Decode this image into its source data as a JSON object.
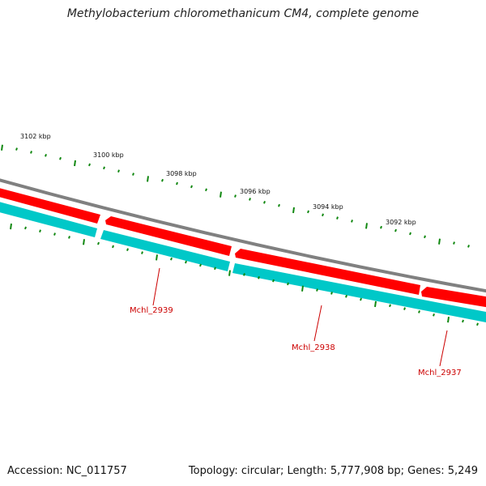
{
  "title": "Methylobacterium chloromethanicum CM4, complete genome",
  "footer": {
    "accession": "Accession: NC_011757",
    "topology": "Topology: circular; Length: 5,777,908 bp; Genes: 5,249"
  },
  "kbp_labels": [
    "3102 kbp",
    "3100 kbp",
    "3098 kbp",
    "3096 kbp",
    "3094 kbp",
    "3092 kbp"
  ],
  "genes": [
    {
      "name": "Mchl_2939"
    },
    {
      "name": "Mchl_2938"
    },
    {
      "name": "Mchl_2937"
    }
  ],
  "colors": {
    "backbone": "#808080",
    "cds": "#ff0000",
    "gene": "#00c8c8",
    "tick": "#118811",
    "label": "#cc0000"
  }
}
